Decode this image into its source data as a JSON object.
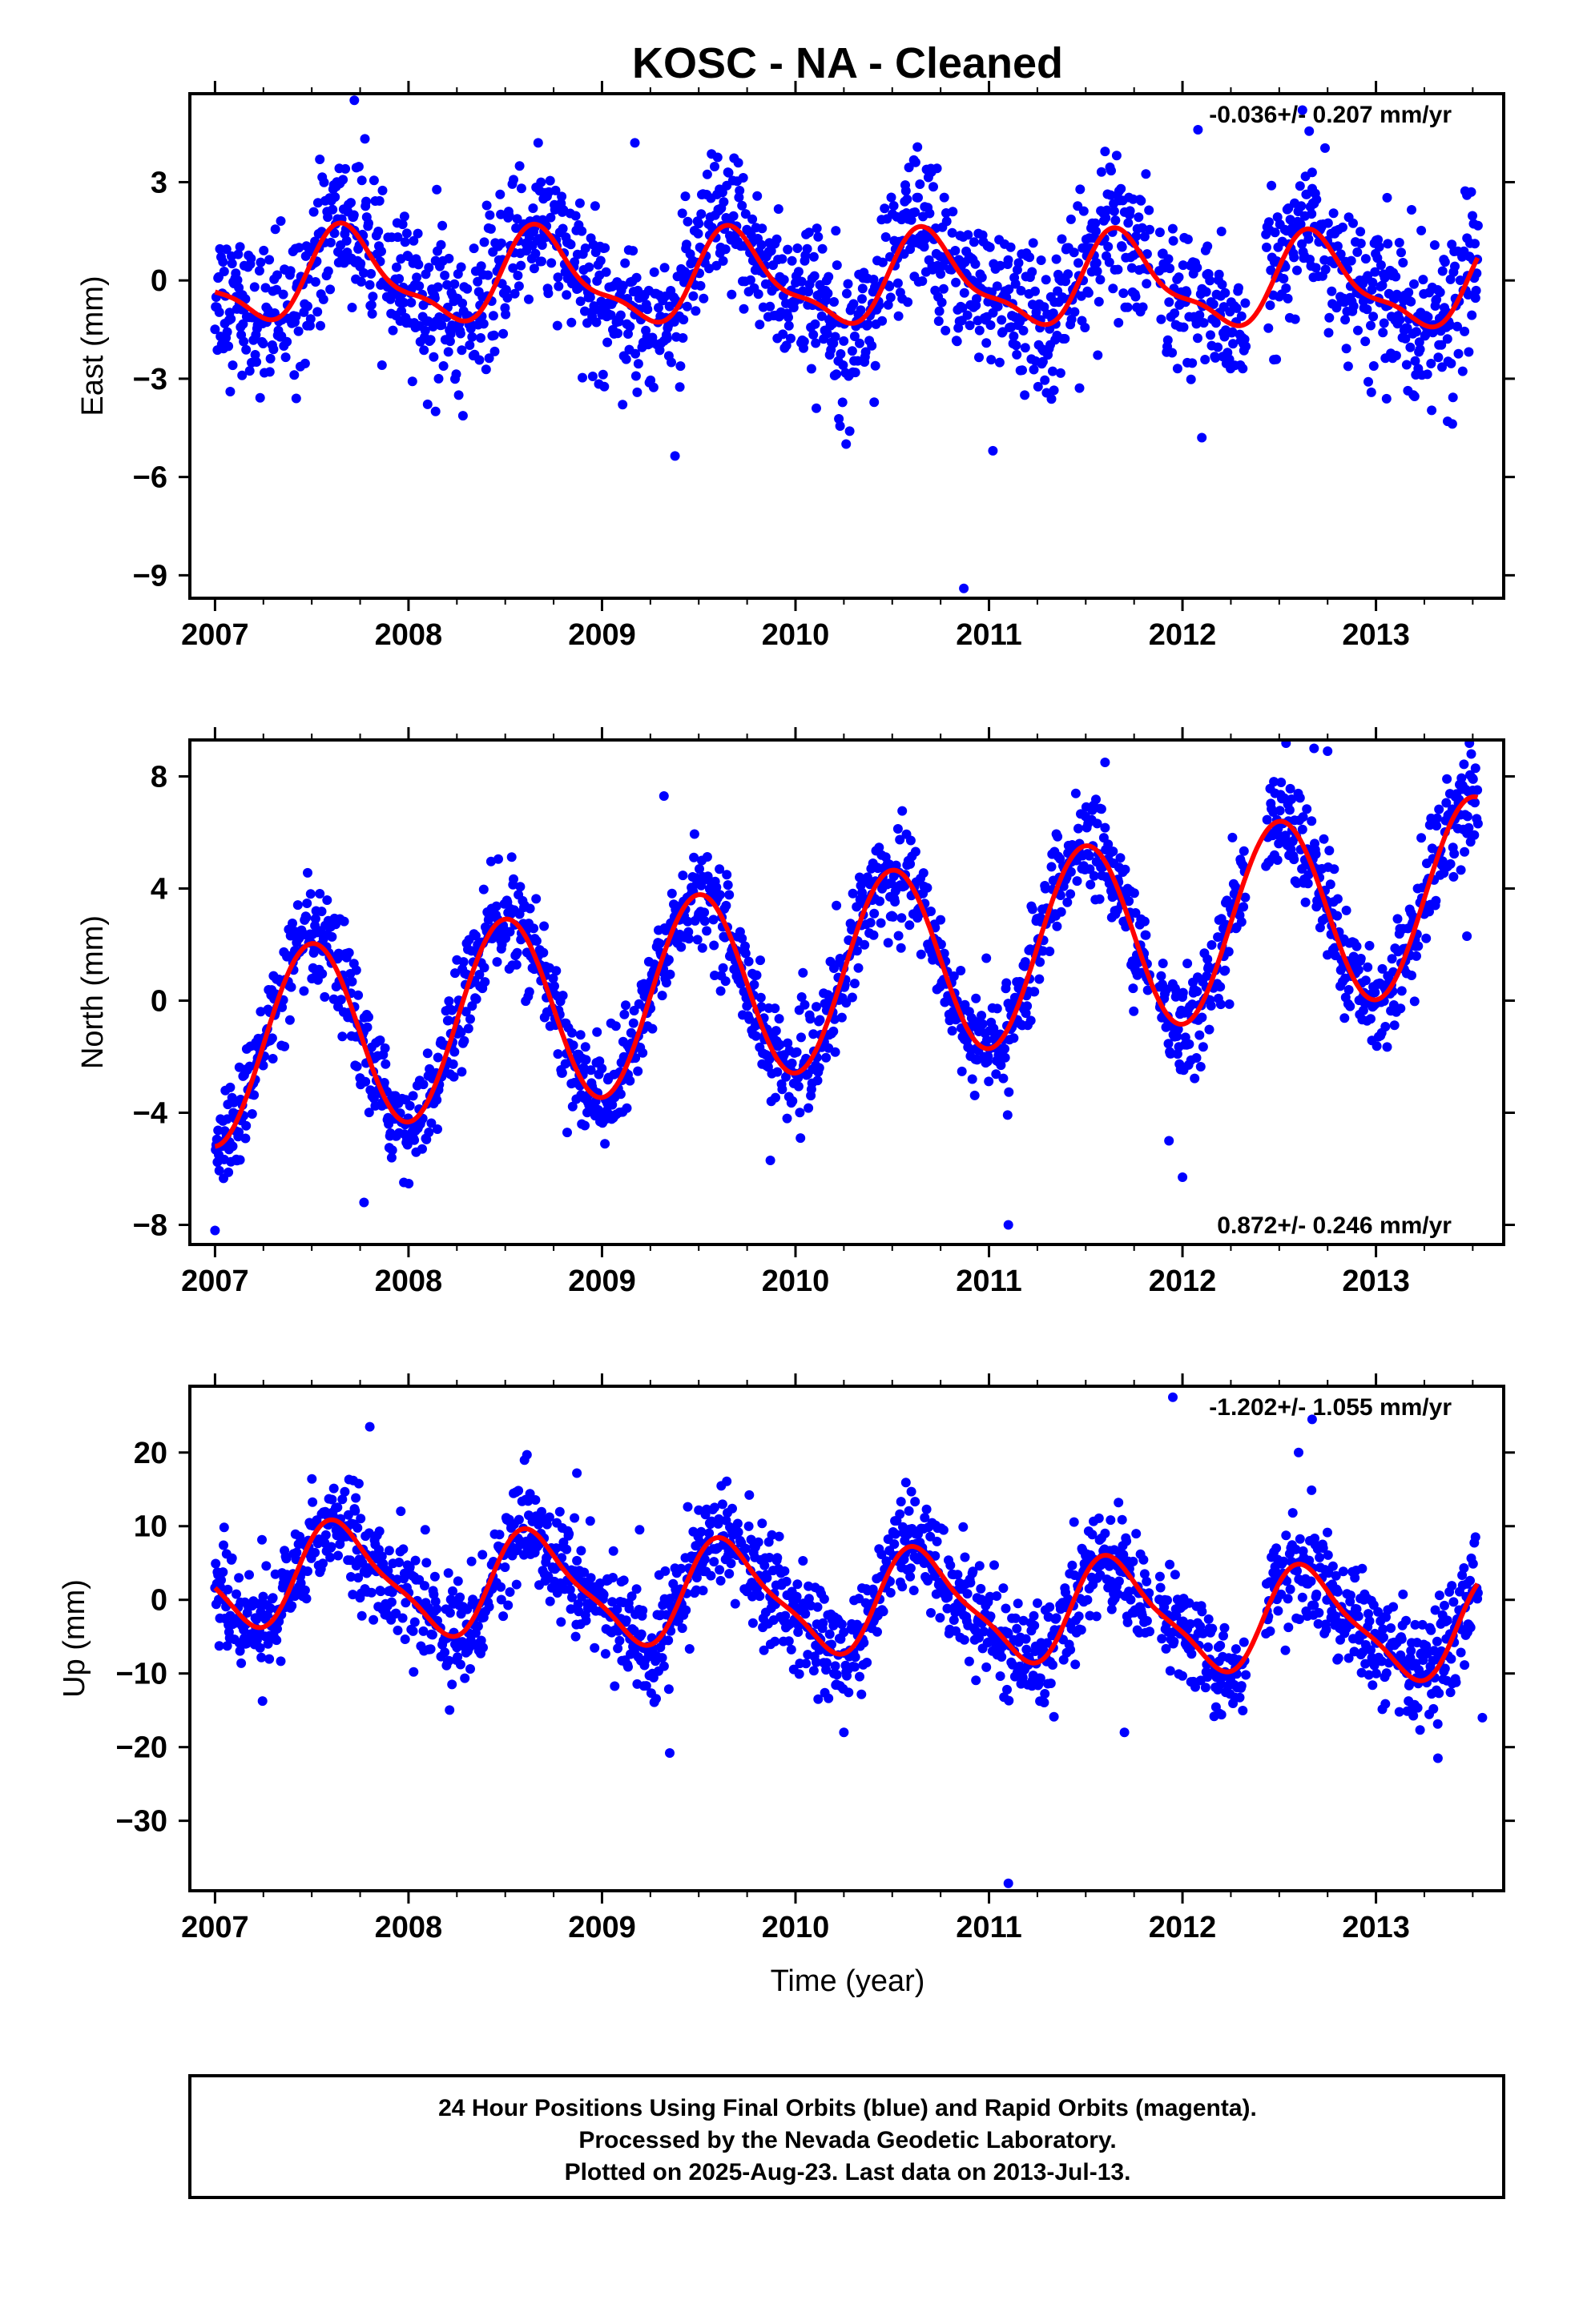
{
  "chart_data": {
    "type": "scatter",
    "title": "KOSC  - NA - Cleaned",
    "xlabel": "Time (year)",
    "xlim": [
      2006.87,
      2013.66
    ],
    "xticks": [
      2007,
      2008,
      2009,
      2010,
      2011,
      2012,
      2013
    ],
    "xtick_labels": [
      "2007",
      "2008",
      "2009",
      "2010",
      "2011",
      "2012",
      "2013"
    ],
    "colors": {
      "final_orbits": "#0000ff",
      "model_fit": "#ff0000",
      "rapid_orbits": "#ff00ff"
    },
    "panels": [
      {
        "name": "east",
        "ylabel": "East (mm)",
        "ylim": [
          -9.7,
          5.7
        ],
        "yticks": [
          3,
          0,
          -3,
          -6,
          -9
        ],
        "ytick_labels": [
          "3",
          "0",
          "−3",
          "−6",
          "−9"
        ],
        "rate_label": "-0.036+/- 0.207 mm/yr",
        "rate_position": "top-right",
        "model": {
          "rate": -0.036,
          "offset": 0.1,
          "annual_amp": 1.3,
          "annual_phase_year": 0.69,
          "semiannual_amp": 0.45,
          "semiannual_phase_year": 0.12
        },
        "scatter_sigma": 1.1,
        "outliers": [
          [
            2007.72,
            5.5
          ],
          [
            2007.14,
            -2.9
          ],
          [
            2007.42,
            -3.6
          ],
          [
            2008.14,
            -4.0
          ],
          [
            2008.67,
            4.2
          ],
          [
            2009.17,
            4.2
          ],
          [
            2010.28,
            -4.6
          ],
          [
            2010.87,
            -9.4
          ],
          [
            2011.02,
            -5.2
          ],
          [
            2012.08,
            4.6
          ],
          [
            2012.1,
            -4.8
          ],
          [
            2013.37,
            -4.3
          ],
          [
            2013.47,
            2.6
          ],
          [
            2012.67,
            3.3
          ]
        ]
      },
      {
        "name": "north",
        "ylabel": "North (mm)",
        "ylim": [
          -8.7,
          9.3
        ],
        "yticks": [
          8,
          4,
          0,
          -4,
          -8
        ],
        "ytick_labels": [
          "8",
          "4",
          "0",
          "−4",
          "−8"
        ],
        "rate_label": "0.872+/- 0.246 mm/yr",
        "rate_position": "bottom-right",
        "model": {
          "rate": 0.872,
          "offset": -1.8,
          "annual_amp": 3.4,
          "annual_phase_year": 0.5,
          "semiannual_amp": 0.0,
          "semiannual_phase_year": 0.0
        },
        "scatter_sigma": 0.9,
        "outliers": [
          [
            2007.0,
            -8.2
          ],
          [
            2009.32,
            7.3
          ],
          [
            2009.87,
            -5.7
          ],
          [
            2011.1,
            -8.0
          ],
          [
            2011.6,
            8.5
          ],
          [
            2011.93,
            -5.0
          ],
          [
            2012.0,
            -6.3
          ],
          [
            2012.68,
            9.0
          ],
          [
            2012.75,
            8.9
          ],
          [
            2013.5,
            7.5
          ],
          [
            2013.47,
            2.3
          ],
          [
            2007.77,
            -7.2
          ]
        ]
      },
      {
        "name": "up",
        "ylabel": "Up (mm)",
        "ylim": [
          -39.5,
          29
        ],
        "yticks": [
          20,
          10,
          0,
          -10,
          -20,
          -30
        ],
        "ytick_labels": [
          "20",
          "10",
          "0",
          "−10",
          "−20",
          "−30"
        ],
        "rate_label": "-1.202+/- 1.055 mm/yr",
        "rate_position": "top-right",
        "model": {
          "rate": -1.202,
          "offset": 3.8,
          "annual_amp": 6.8,
          "annual_phase_year": 0.66,
          "semiannual_amp": 1.8,
          "semiannual_phase_year": 0.05
        },
        "scatter_sigma": 3.6,
        "outliers": [
          [
            2007.8,
            23.5
          ],
          [
            2009.35,
            -20.8
          ],
          [
            2011.1,
            -38.5
          ],
          [
            2011.95,
            27.5
          ],
          [
            2012.6,
            20.0
          ],
          [
            2012.67,
            24.5
          ],
          [
            2013.32,
            -21.5
          ],
          [
            2013.55,
            -16.0
          ],
          [
            2011.7,
            -18.0
          ],
          [
            2010.25,
            -18.0
          ],
          [
            2008.87,
            17.2
          ]
        ]
      }
    ]
  },
  "footer": {
    "line1": "24 Hour Positions Using Final Orbits (blue) and Rapid Orbits (magenta).",
    "line2": "Processed by the Nevada Geodetic Laboratory.",
    "line3": "Plotted on 2025-Aug-23. Last data on 2013-Jul-13."
  }
}
